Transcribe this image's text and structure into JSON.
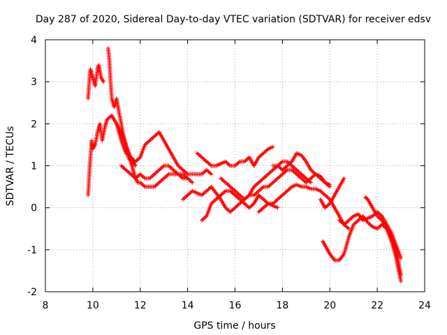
{
  "chart_data": {
    "type": "scatter",
    "title": "Day 287 of 2020, Sidereal Day-to-day VTEC variation (SDTVAR) for receiver edsv",
    "xlabel": "GPS time / hours",
    "ylabel": "SDTVAR / TECUs",
    "xlim": [
      8,
      24
    ],
    "ylim": [
      -2,
      4
    ],
    "xticks": [
      8,
      10,
      12,
      14,
      16,
      18,
      20,
      22,
      24
    ],
    "yticks": [
      -2,
      -1,
      0,
      1,
      2,
      3,
      4
    ],
    "xtick_labels": [
      "8",
      "10",
      "12",
      "14",
      "16",
      "18",
      "20",
      "22",
      "24"
    ],
    "ytick_labels": [
      "-2",
      "-1",
      "0",
      "1",
      "2",
      "3",
      "4"
    ],
    "grid": true,
    "marker": "+",
    "color": "#ff0000",
    "series": [
      {
        "name": "s1",
        "points": [
          [
            9.8,
            0.3
          ],
          [
            9.85,
            0.8
          ],
          [
            9.9,
            1.2
          ],
          [
            9.95,
            1.6
          ],
          [
            10.0,
            1.4
          ],
          [
            10.1,
            1.5
          ],
          [
            10.2,
            1.8
          ],
          [
            10.3,
            2.0
          ],
          [
            10.4,
            1.6
          ],
          [
            10.5,
            1.9
          ],
          [
            10.6,
            2.1
          ],
          [
            10.8,
            2.2
          ],
          [
            11.0,
            2.0
          ],
          [
            11.2,
            1.8
          ],
          [
            11.4,
            1.5
          ],
          [
            11.6,
            1.2
          ],
          [
            11.8,
            1.0
          ]
        ]
      },
      {
        "name": "s2",
        "points": [
          [
            9.8,
            2.6
          ],
          [
            9.85,
            3.0
          ],
          [
            9.9,
            3.3
          ],
          [
            10.0,
            3.1
          ],
          [
            10.1,
            2.9
          ],
          [
            10.2,
            3.3
          ],
          [
            10.25,
            3.4
          ],
          [
            10.35,
            3.1
          ],
          [
            10.45,
            3.0
          ]
        ]
      },
      {
        "name": "s3",
        "points": [
          [
            10.65,
            3.8
          ],
          [
            10.7,
            3.5
          ],
          [
            10.75,
            3.0
          ],
          [
            10.8,
            2.6
          ],
          [
            10.9,
            2.4
          ],
          [
            11.0,
            2.6
          ],
          [
            11.1,
            2.3
          ],
          [
            11.2,
            2.0
          ],
          [
            11.3,
            1.7
          ],
          [
            11.4,
            1.5
          ],
          [
            11.5,
            1.2
          ],
          [
            11.6,
            1.1
          ],
          [
            11.7,
            0.9
          ],
          [
            11.8,
            0.7
          ],
          [
            11.9,
            0.6
          ],
          [
            12.0,
            0.6
          ],
          [
            12.2,
            0.5
          ],
          [
            12.4,
            0.5
          ],
          [
            12.6,
            0.5
          ],
          [
            12.8,
            0.6
          ],
          [
            13.0,
            0.7
          ],
          [
            13.2,
            0.8
          ],
          [
            13.4,
            0.8
          ],
          [
            13.6,
            0.8
          ],
          [
            13.8,
            0.7
          ],
          [
            14.0,
            0.7
          ]
        ]
      },
      {
        "name": "s4",
        "points": [
          [
            11.0,
            2.0
          ],
          [
            11.2,
            1.6
          ],
          [
            11.4,
            1.3
          ],
          [
            11.6,
            1.2
          ],
          [
            11.8,
            1.1
          ],
          [
            12.0,
            1.2
          ],
          [
            12.2,
            1.5
          ],
          [
            12.4,
            1.6
          ],
          [
            12.6,
            1.7
          ],
          [
            12.8,
            1.8
          ],
          [
            13.0,
            1.6
          ],
          [
            13.2,
            1.4
          ],
          [
            13.4,
            1.2
          ],
          [
            13.6,
            1.0
          ],
          [
            13.8,
            0.9
          ],
          [
            14.0,
            0.8
          ],
          [
            14.2,
            0.8
          ],
          [
            14.4,
            0.8
          ],
          [
            14.6,
            0.8
          ],
          [
            14.8,
            0.9
          ],
          [
            15.0,
            0.8
          ]
        ]
      },
      {
        "name": "s5",
        "points": [
          [
            11.2,
            1.0
          ],
          [
            11.4,
            0.9
          ],
          [
            11.6,
            0.8
          ],
          [
            11.8,
            0.7
          ],
          [
            12.0,
            0.8
          ],
          [
            12.2,
            0.7
          ],
          [
            12.4,
            0.7
          ],
          [
            12.6,
            0.8
          ],
          [
            12.8,
            0.9
          ],
          [
            13.0,
            1.0
          ],
          [
            13.2,
            1.0
          ],
          [
            13.4,
            0.9
          ],
          [
            13.6,
            0.8
          ],
          [
            13.8,
            0.8
          ],
          [
            14.0,
            0.7
          ],
          [
            14.2,
            0.6
          ]
        ]
      },
      {
        "name": "s6",
        "points": [
          [
            13.8,
            0.2
          ],
          [
            14.0,
            0.3
          ],
          [
            14.2,
            0.4
          ],
          [
            14.4,
            0.35
          ],
          [
            14.6,
            0.3
          ],
          [
            14.8,
            0.4
          ],
          [
            15.0,
            0.5
          ],
          [
            15.2,
            0.35
          ],
          [
            15.4,
            0.2
          ],
          [
            15.6,
            0.0
          ],
          [
            15.8,
            -0.1
          ],
          [
            16.0,
            0.0
          ],
          [
            16.2,
            0.1
          ],
          [
            16.4,
            0.2
          ],
          [
            16.6,
            0.3
          ],
          [
            16.8,
            0.3
          ],
          [
            17.0,
            0.4
          ],
          [
            17.2,
            0.5
          ],
          [
            17.4,
            0.5
          ],
          [
            17.6,
            0.6
          ],
          [
            17.8,
            0.7
          ],
          [
            18.0,
            0.8
          ],
          [
            18.2,
            0.9
          ],
          [
            18.4,
            0.9
          ],
          [
            18.6,
            0.8
          ],
          [
            18.8,
            0.7
          ],
          [
            19.0,
            0.6
          ],
          [
            19.2,
            0.7
          ],
          [
            19.4,
            0.8
          ],
          [
            19.6,
            0.7
          ],
          [
            19.8,
            0.6
          ],
          [
            20.0,
            0.5
          ]
        ]
      },
      {
        "name": "s7",
        "points": [
          [
            14.4,
            1.3
          ],
          [
            14.6,
            1.2
          ],
          [
            14.8,
            1.1
          ],
          [
            15.0,
            1.0
          ],
          [
            15.2,
            1.0
          ],
          [
            15.4,
            1.05
          ],
          [
            15.6,
            1.1
          ],
          [
            15.8,
            1.0
          ],
          [
            16.0,
            1.0
          ],
          [
            16.2,
            1.1
          ],
          [
            16.4,
            1.1
          ],
          [
            16.6,
            1.2
          ],
          [
            16.8,
            1.0
          ],
          [
            17.0,
            1.2
          ],
          [
            17.2,
            1.3
          ],
          [
            17.4,
            1.4
          ],
          [
            17.6,
            1.45
          ]
        ]
      },
      {
        "name": "s8",
        "points": [
          [
            14.6,
            -0.3
          ],
          [
            14.8,
            -0.2
          ],
          [
            15.0,
            0.1
          ],
          [
            15.2,
            0.2
          ],
          [
            15.4,
            0.3
          ],
          [
            15.6,
            0.4
          ],
          [
            15.8,
            0.4
          ],
          [
            16.0,
            0.3
          ],
          [
            16.2,
            0.2
          ],
          [
            16.4,
            0.1
          ],
          [
            16.6,
            0.0
          ],
          [
            16.8,
            0.1
          ],
          [
            17.0,
            0.3
          ],
          [
            17.2,
            0.2
          ],
          [
            17.4,
            0.1
          ],
          [
            17.6,
            0.05
          ],
          [
            17.8,
            0.0
          ]
        ]
      },
      {
        "name": "s9",
        "points": [
          [
            15.4,
            0.7
          ],
          [
            15.6,
            0.6
          ],
          [
            15.8,
            0.5
          ],
          [
            16.0,
            0.4
          ],
          [
            16.2,
            0.3
          ],
          [
            16.4,
            0.2
          ],
          [
            16.6,
            0.3
          ],
          [
            16.8,
            0.5
          ],
          [
            17.0,
            0.6
          ],
          [
            17.2,
            0.7
          ],
          [
            17.4,
            0.8
          ],
          [
            17.6,
            0.9
          ],
          [
            17.8,
            1.0
          ],
          [
            18.0,
            1.1
          ],
          [
            18.2,
            1.1
          ],
          [
            18.4,
            1.0
          ],
          [
            18.6,
            0.9
          ],
          [
            18.8,
            0.8
          ],
          [
            19.0,
            0.7
          ],
          [
            19.2,
            0.6
          ]
        ]
      },
      {
        "name": "s10",
        "points": [
          [
            17.0,
            -0.1
          ],
          [
            17.2,
            0.0
          ],
          [
            17.4,
            0.1
          ],
          [
            17.6,
            0.1
          ],
          [
            17.8,
            0.2
          ],
          [
            18.0,
            0.3
          ],
          [
            18.2,
            0.4
          ],
          [
            18.4,
            0.5
          ],
          [
            18.6,
            0.55
          ],
          [
            18.8,
            0.5
          ],
          [
            19.0,
            0.5
          ],
          [
            19.2,
            0.45
          ],
          [
            19.4,
            0.45
          ],
          [
            19.6,
            0.4
          ],
          [
            19.8,
            0.3
          ],
          [
            20.0,
            0.2
          ],
          [
            20.2,
            0.0
          ],
          [
            20.4,
            -0.2
          ],
          [
            20.6,
            -0.4
          ],
          [
            20.8,
            -0.5
          ]
        ]
      },
      {
        "name": "s11",
        "points": [
          [
            17.6,
            1.0
          ],
          [
            17.8,
            1.0
          ],
          [
            18.0,
            0.9
          ],
          [
            18.2,
            1.0
          ],
          [
            18.4,
            1.1
          ],
          [
            18.6,
            1.3
          ],
          [
            18.8,
            1.25
          ],
          [
            19.0,
            1.1
          ],
          [
            19.2,
            0.9
          ],
          [
            19.4,
            0.8
          ],
          [
            19.6,
            0.75
          ],
          [
            19.8,
            0.6
          ],
          [
            20.0,
            0.55
          ]
        ]
      },
      {
        "name": "s12",
        "points": [
          [
            19.6,
            0.2
          ],
          [
            19.8,
            0.0
          ],
          [
            20.0,
            0.1
          ],
          [
            20.2,
            0.3
          ],
          [
            20.4,
            0.5
          ],
          [
            20.6,
            0.7
          ]
        ]
      },
      {
        "name": "s13",
        "points": [
          [
            19.7,
            -0.8
          ],
          [
            19.8,
            -0.9
          ],
          [
            19.9,
            -1.0
          ],
          [
            20.0,
            -1.1
          ],
          [
            20.2,
            -1.25
          ],
          [
            20.4,
            -1.25
          ],
          [
            20.6,
            -1.1
          ],
          [
            20.8,
            -0.7
          ],
          [
            21.0,
            -0.4
          ],
          [
            21.2,
            -0.3
          ],
          [
            21.4,
            -0.2
          ],
          [
            21.6,
            -0.35
          ],
          [
            21.8,
            -0.45
          ],
          [
            22.0,
            -0.5
          ],
          [
            22.2,
            -0.4
          ],
          [
            22.4,
            -0.5
          ],
          [
            22.6,
            -0.7
          ],
          [
            22.8,
            -1.0
          ],
          [
            22.9,
            -1.3
          ],
          [
            23.0,
            -1.6
          ]
        ]
      },
      {
        "name": "s14",
        "points": [
          [
            20.4,
            -0.3
          ],
          [
            20.6,
            -0.4
          ],
          [
            20.8,
            -0.3
          ],
          [
            21.0,
            -0.2
          ],
          [
            21.2,
            -0.15
          ],
          [
            21.4,
            -0.3
          ],
          [
            21.6,
            -0.25
          ],
          [
            21.8,
            -0.2
          ],
          [
            22.0,
            -0.1
          ],
          [
            22.2,
            -0.2
          ],
          [
            22.4,
            -0.4
          ],
          [
            22.6,
            -0.6
          ],
          [
            22.8,
            -0.9
          ],
          [
            23.0,
            -1.2
          ]
        ]
      },
      {
        "name": "s15",
        "points": [
          [
            21.5,
            0.25
          ],
          [
            21.6,
            0.2
          ],
          [
            21.7,
            0.1
          ],
          [
            21.8,
            0.0
          ],
          [
            22.0,
            -0.2
          ],
          [
            22.2,
            -0.3
          ],
          [
            22.4,
            -0.5
          ],
          [
            22.6,
            -0.8
          ],
          [
            22.8,
            -1.2
          ],
          [
            22.9,
            -1.5
          ],
          [
            23.0,
            -1.75
          ]
        ]
      }
    ]
  }
}
